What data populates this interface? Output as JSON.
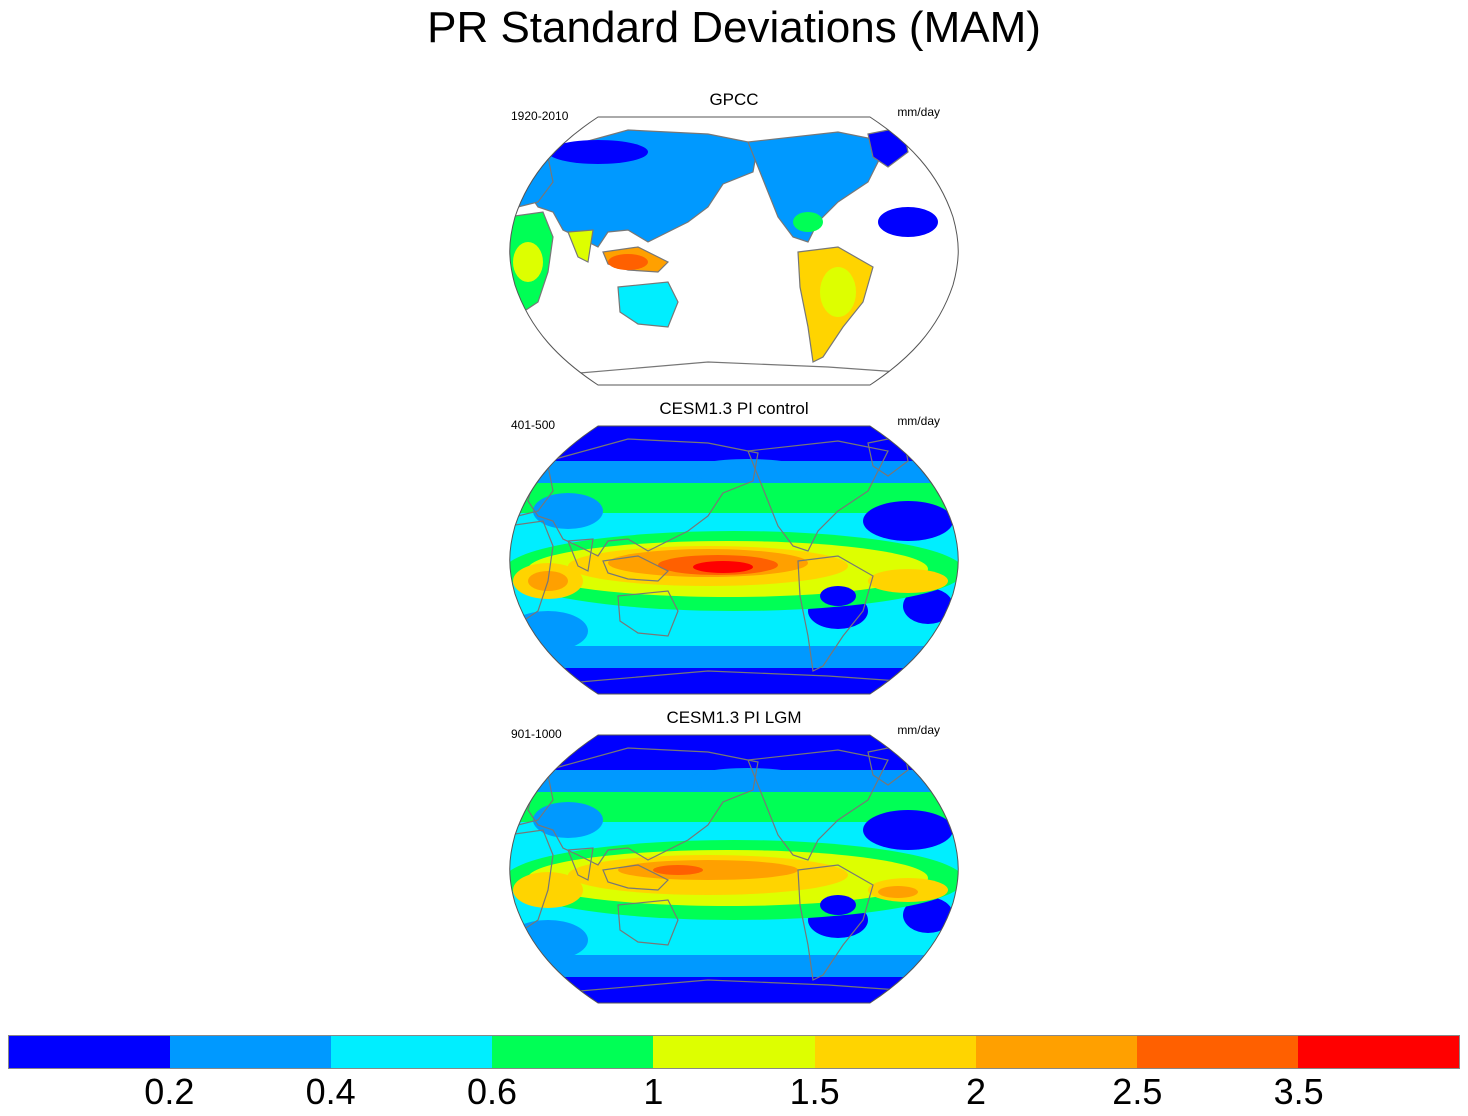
{
  "title": "PR Standard Deviations (MAM)",
  "panels": [
    {
      "title": "GPCC",
      "left_string": "1920-2010",
      "right_string": "mm/day",
      "field": "land_only"
    },
    {
      "title": "CESM1.3 PI control",
      "left_string": "401-500",
      "right_string": "mm/day",
      "field": "global"
    },
    {
      "title": "CESM1.3 PI LGM",
      "left_string": "901-1000",
      "right_string": "mm/day",
      "field": "global"
    }
  ],
  "projection": "Robinson (Pacific-centered)",
  "colorbar": {
    "units": "mm/day",
    "labels": [
      "0.2",
      "0.4",
      "0.6",
      "1",
      "1.5",
      "2",
      "2.5",
      "3.5"
    ],
    "colors": [
      "#0000ff",
      "#0099ff",
      "#00eeff",
      "#00ff55",
      "#ddff00",
      "#ffd400",
      "#ffa000",
      "#ff6000",
      "#ff0000"
    ]
  },
  "colors": {
    "land_outline": "#777777",
    "border": "#555555",
    "background": "#ffffff"
  }
}
